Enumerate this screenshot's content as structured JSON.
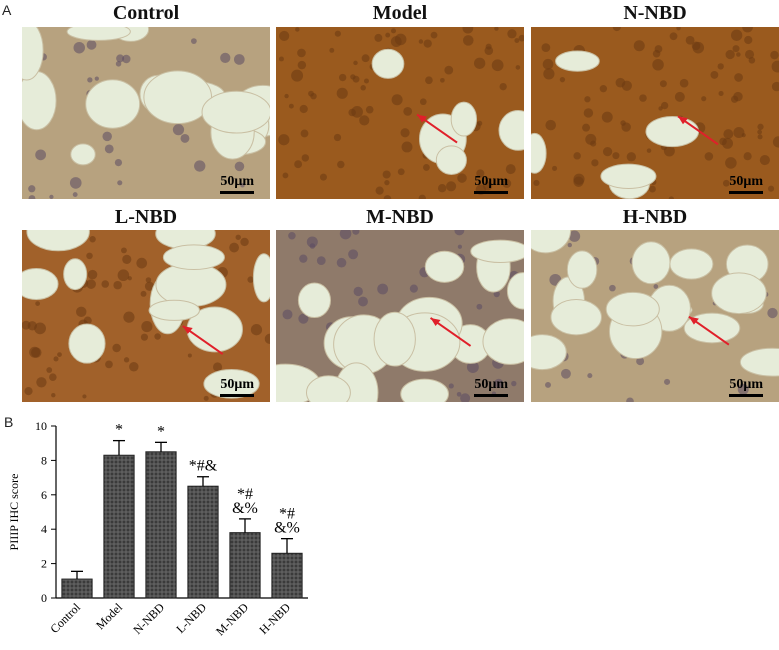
{
  "figure": {
    "panel_a_label": "A",
    "panel_b_label": "B",
    "scale_bar_label": "50μm",
    "micrographs": [
      {
        "title": "Control",
        "stain": "light"
      },
      {
        "title": "Model",
        "stain": "heavy"
      },
      {
        "title": "N-NBD",
        "stain": "heavy"
      },
      {
        "title": "L-NBD",
        "stain": "medium"
      },
      {
        "title": "M-NBD",
        "stain": "mild"
      },
      {
        "title": "H-NBD",
        "stain": "light"
      }
    ],
    "colors": {
      "tissue_brown": "#9a5a1e",
      "tissue_dark": "#6b3a12",
      "background_pale": "#e6ecd9",
      "arrow": "#e0202a",
      "bar_fill": "#404040"
    }
  },
  "chart_data": {
    "type": "bar",
    "categories": [
      "Control",
      "Model",
      "N-NBD",
      "L-NBD",
      "M-NBD",
      "H-NBD"
    ],
    "values": [
      1.1,
      8.3,
      8.5,
      6.5,
      3.8,
      2.6
    ],
    "errors": [
      0.45,
      0.85,
      0.55,
      0.55,
      0.8,
      0.85
    ],
    "annotations": [
      "",
      "*",
      "*",
      "*#&",
      "*#\n&%",
      "*#\n&%"
    ],
    "ylabel": "PIIIP IHC score",
    "xlabel": "",
    "title": "",
    "ylim": [
      0,
      10
    ],
    "yticks": [
      0,
      2,
      4,
      6,
      8,
      10
    ],
    "grid": false
  }
}
